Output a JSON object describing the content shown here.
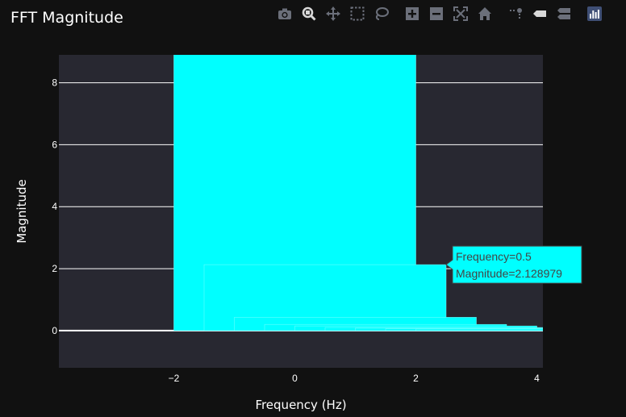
{
  "title": "FFT Magnitude",
  "modebar": {
    "buttons": [
      "camera-icon",
      "zoom-icon",
      "pan-icon",
      "box-select-icon",
      "lasso-icon",
      "zoom-in-icon",
      "zoom-out-icon",
      "autoscale-icon",
      "reset-axes-icon",
      "spike-lines-icon",
      "hover-closest-icon",
      "hover-compare-icon",
      "plotly-logo-icon"
    ]
  },
  "colors": {
    "paper": "#111111",
    "plot": "#282831",
    "bar": "#00ffff",
    "bar_edge": "#7fffff",
    "grid": "#ffffff",
    "tooltip_border": "#444444"
  },
  "chart_data": {
    "type": "bar",
    "title": "FFT Magnitude",
    "xlabel": "Frequency (Hz)",
    "ylabel": "Magnitude",
    "xlim": [
      -3.9,
      4.1
    ],
    "ylim": [
      -1.2,
      8.9
    ],
    "x_ticks": [
      -2,
      0,
      2,
      4
    ],
    "x_tick_labels": [
      "−2",
      "0",
      "2",
      "4"
    ],
    "y_ticks": [
      0,
      2,
      4,
      6,
      8
    ],
    "y_tick_labels": [
      "0",
      "2",
      "4",
      "6",
      "8"
    ],
    "grid": true,
    "bar_width": 4,
    "x": [
      0,
      0.5,
      1.0,
      1.5,
      2.0,
      2.5,
      3.0,
      3.5,
      4.0
    ],
    "values": [
      9.6,
      2.128979,
      0.43,
      0.2,
      0.15,
      0.1,
      0.08,
      0.06,
      0.05
    ],
    "hover": {
      "index": 1,
      "line1": "Frequency=0.5",
      "line2": "Magnitude=2.128979"
    }
  }
}
